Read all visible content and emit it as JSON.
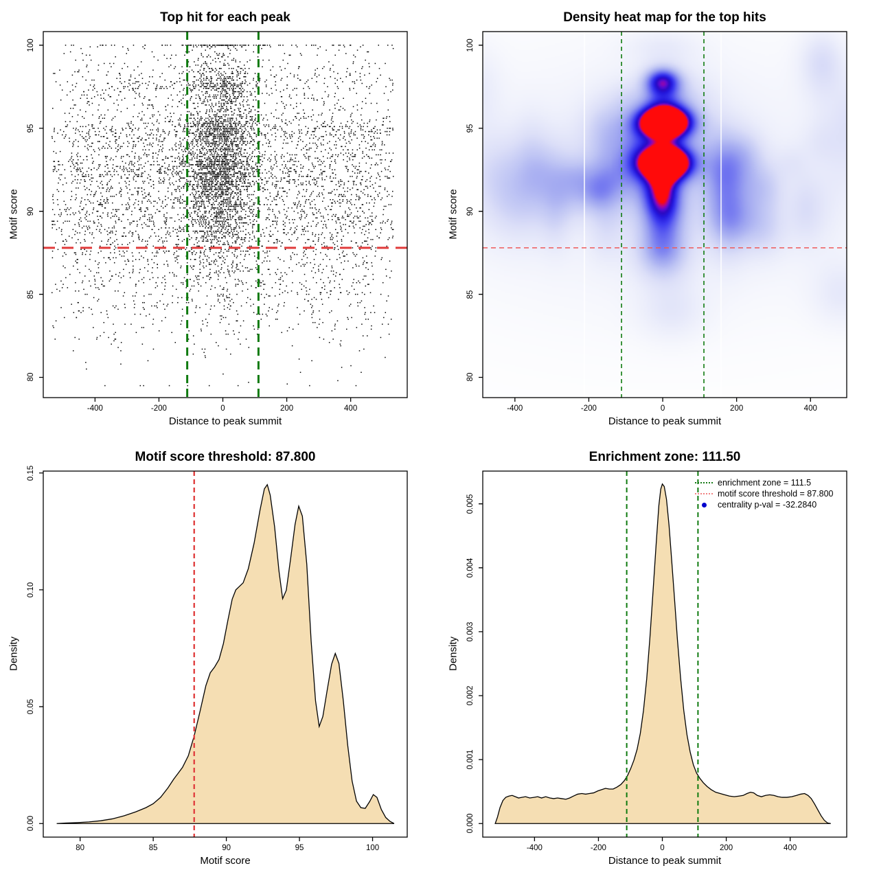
{
  "figure": {
    "background": "#ffffff",
    "text_color": "#000000",
    "fill_color": "#f5deb3",
    "green_line_color": "#0e7a0e",
    "red_line_color": "#e03a3a"
  },
  "chart_data": [
    {
      "panel": "top-left",
      "type": "scatter",
      "title": "Top hit for each peak",
      "xlabel": "Distance to peak summit",
      "ylabel": "Motif score",
      "xlim": [
        -562,
        577
      ],
      "ylim": [
        78.78,
        100.82
      ],
      "x_ticks": [
        -400,
        -200,
        0,
        200,
        400
      ],
      "x_tick_labels": [
        "-400",
        "-200",
        "0",
        "200",
        "400"
      ],
      "y_ticks": [
        80,
        85,
        90,
        95,
        100
      ],
      "y_tick_labels": [
        "80",
        "85",
        "90",
        "95",
        "100"
      ],
      "grid": false,
      "point_color": "#000000",
      "lines": [
        {
          "orient": "v",
          "value": -111.5,
          "color": "#0e7a0e",
          "width": 3,
          "dash": [
            12,
            8
          ]
        },
        {
          "orient": "v",
          "value": 111.5,
          "color": "#0e7a0e",
          "width": 3,
          "dash": [
            12,
            8
          ]
        },
        {
          "orient": "h",
          "value": 87.8,
          "color": "#e03a3a",
          "width": 3,
          "dash": [
            17,
            10
          ]
        }
      ],
      "points": {
        "count": 7500,
        "seed": 77,
        "score_quantum": 0.1,
        "score_range": [
          79.55,
          100
        ],
        "score_mixture": [
          [
            92.65,
            0.75,
            0.23
          ],
          [
            95.0,
            0.5,
            0.13
          ],
          [
            94.2,
            0.45,
            0.06
          ],
          [
            97.5,
            0.45,
            0.07
          ],
          [
            96.3,
            0.5,
            0.04
          ],
          [
            91.0,
            0.9,
            0.13
          ],
          [
            89.6,
            0.9,
            0.09
          ],
          [
            88.5,
            1.0,
            0.07
          ],
          [
            87.0,
            1.3,
            0.06
          ],
          [
            85.3,
            1.5,
            0.045
          ],
          [
            83.5,
            1.6,
            0.02
          ],
          [
            98.4,
            0.4,
            0.025
          ],
          [
            99.5,
            0.35,
            0.015
          ],
          [
            100.0,
            0.04,
            0.02
          ],
          [
            90.0,
            5.0,
            0.035
          ]
        ],
        "center_x": {
          "mean": -8,
          "sd": 55
        },
        "center_fraction_by_score": [
          [
            99.2,
            0.55
          ],
          [
            91,
            0.45
          ],
          [
            88.5,
            0.33
          ],
          [
            86,
            0.2
          ],
          [
            0,
            0.1
          ]
        ],
        "x_range": [
          -535,
          535
        ]
      }
    },
    {
      "panel": "top-right",
      "type": "heatmap",
      "title": "Density heat map for the top hits",
      "xlabel": "Distance to peak summit",
      "ylabel": "Motif score",
      "xlim": [
        -487,
        498
      ],
      "ylim": [
        78.78,
        100.82
      ],
      "x_ticks": [
        -400,
        -200,
        0,
        200,
        400
      ],
      "x_tick_labels": [
        "-400",
        "-200",
        "0",
        "200",
        "400"
      ],
      "y_ticks": [
        80,
        85,
        90,
        95,
        100
      ],
      "y_tick_labels": [
        "80",
        "85",
        "90",
        "95",
        "100"
      ],
      "lines": [
        {
          "orient": "v",
          "value": -111.5,
          "color": "#0e7a0e",
          "width": 1.6,
          "dash": [
            6,
            5
          ]
        },
        {
          "orient": "v",
          "value": 111.5,
          "color": "#0e7a0e",
          "width": 1.6,
          "dash": [
            6,
            5
          ]
        },
        {
          "orient": "h",
          "value": 87.8,
          "color": "#ef5a5a",
          "width": 1.6,
          "dash": [
            7,
            5
          ]
        }
      ],
      "white_streaks_x": [
        -212,
        158
      ],
      "colormap": [
        [
          0,
          "#ffffff"
        ],
        [
          0.06,
          "#f7f8fd"
        ],
        [
          0.14,
          "#eceefb"
        ],
        [
          0.24,
          "#dcdff8"
        ],
        [
          0.36,
          "#bfc5f4"
        ],
        [
          0.48,
          "#9aa1f0"
        ],
        [
          0.6,
          "#6a6ef0"
        ],
        [
          0.7,
          "#3d3cf0"
        ],
        [
          0.79,
          "#2317dd"
        ],
        [
          0.85,
          "#2c0ac2"
        ],
        [
          0.9,
          "#5c0ad2"
        ],
        [
          0.945,
          "#a706a0"
        ],
        [
          1,
          "#ff0a0a"
        ]
      ],
      "hotspots": [
        [
          5,
          95.35
        ],
        [
          8,
          92.9
        ]
      ],
      "blobs": [
        [
          5,
          95.35,
          46,
          0.62,
          1.45
        ],
        [
          8,
          92.9,
          44,
          0.65,
          1.45
        ],
        [
          0,
          97.8,
          34,
          0.6,
          0.68
        ],
        [
          0,
          96.5,
          42,
          0.65,
          0.2
        ],
        [
          -4,
          91.35,
          32,
          0.9,
          0.45
        ],
        [
          2,
          90.3,
          36,
          1.0,
          0.32
        ],
        [
          0,
          89.0,
          42,
          1.1,
          0.22
        ],
        [
          0,
          87.7,
          48,
          0.9,
          0.22
        ],
        [
          0,
          86.6,
          52,
          0.9,
          0.12
        ],
        [
          0,
          92.8,
          65,
          3.2,
          0.12
        ],
        [
          0,
          93.5,
          115,
          3.2,
          0.08
        ],
        [
          0,
          99.9,
          70,
          0.7,
          0.09
        ],
        [
          -45,
          95.0,
          95,
          1.3,
          0.06
        ],
        [
          50,
          93.3,
          95,
          1.5,
          0.04
        ],
        [
          0,
          91.5,
          480,
          5.2,
          0.09
        ],
        [
          0,
          92.5,
          560,
          8.0,
          0.05
        ]
      ],
      "noise": {
        "seed": 97,
        "count": 48,
        "x_range": [
          -515,
          515
        ],
        "y_center": 91.5,
        "y_sd": 3.6,
        "y_clamp": [
          82.5,
          99.6
        ],
        "sx_range": [
          28,
          65
        ],
        "sy_range": [
          0.7,
          2.0
        ],
        "w_range": [
          0.05,
          0.14
        ]
      }
    },
    {
      "panel": "bottom-left",
      "type": "area",
      "title": "Motif score threshold: 87.800",
      "xlabel": "Motif score",
      "ylabel": "Density",
      "xlim": [
        77.48,
        102.37
      ],
      "ylim": [
        -0.0058,
        0.1508
      ],
      "x_ticks": [
        80,
        85,
        90,
        95,
        100
      ],
      "x_tick_labels": [
        "80",
        "85",
        "90",
        "95",
        "100"
      ],
      "y_ticks": [
        0,
        0.05,
        0.1,
        0.15
      ],
      "y_tick_labels": [
        "0.00",
        "0.05",
        "0.10",
        "0.15"
      ],
      "fill": "#f5deb3",
      "stroke": "#000000",
      "motif_score_threshold": 87.8,
      "lines": [
        {
          "orient": "v",
          "value": 87.8,
          "color": "#e04040",
          "width": 2.4,
          "dash": [
            7,
            5
          ]
        }
      ],
      "curve": [
        [
          78.4,
          0
        ],
        [
          79.0,
          0.0002
        ],
        [
          79.8,
          0.0004
        ],
        [
          80.6,
          0.0007
        ],
        [
          81.4,
          0.0012
        ],
        [
          82.2,
          0.002
        ],
        [
          83.0,
          0.0033
        ],
        [
          83.8,
          0.005
        ],
        [
          84.5,
          0.0068
        ],
        [
          85.0,
          0.0085
        ],
        [
          85.5,
          0.0112
        ],
        [
          86.0,
          0.0152
        ],
        [
          86.4,
          0.019
        ],
        [
          86.7,
          0.0215
        ],
        [
          87.0,
          0.024
        ],
        [
          87.4,
          0.029
        ],
        [
          87.8,
          0.0375
        ],
        [
          88.2,
          0.048
        ],
        [
          88.6,
          0.059
        ],
        [
          88.9,
          0.0645
        ],
        [
          89.2,
          0.067
        ],
        [
          89.5,
          0.0702
        ],
        [
          89.8,
          0.077
        ],
        [
          90.1,
          0.0868
        ],
        [
          90.4,
          0.096
        ],
        [
          90.65,
          0.1
        ],
        [
          90.9,
          0.1015
        ],
        [
          91.15,
          0.103
        ],
        [
          91.5,
          0.109
        ],
        [
          91.9,
          0.12
        ],
        [
          92.3,
          0.134
        ],
        [
          92.6,
          0.1432
        ],
        [
          92.8,
          0.145
        ],
        [
          93.0,
          0.1405
        ],
        [
          93.3,
          0.127
        ],
        [
          93.6,
          0.108
        ],
        [
          93.85,
          0.0962
        ],
        [
          94.1,
          0.0998
        ],
        [
          94.4,
          0.1135
        ],
        [
          94.7,
          0.128
        ],
        [
          94.95,
          0.1358
        ],
        [
          95.2,
          0.1315
        ],
        [
          95.5,
          0.111
        ],
        [
          95.8,
          0.078
        ],
        [
          96.1,
          0.0525
        ],
        [
          96.35,
          0.0415
        ],
        [
          96.6,
          0.0458
        ],
        [
          96.9,
          0.0572
        ],
        [
          97.2,
          0.0682
        ],
        [
          97.45,
          0.0728
        ],
        [
          97.7,
          0.0685
        ],
        [
          98.0,
          0.0525
        ],
        [
          98.3,
          0.0335
        ],
        [
          98.6,
          0.0182
        ],
        [
          98.9,
          0.0096
        ],
        [
          99.2,
          0.0068
        ],
        [
          99.5,
          0.0065
        ],
        [
          99.8,
          0.0094
        ],
        [
          100.05,
          0.0124
        ],
        [
          100.3,
          0.0112
        ],
        [
          100.6,
          0.006
        ],
        [
          100.9,
          0.0026
        ],
        [
          101.2,
          0.0009
        ],
        [
          101.45,
          0.0001
        ]
      ]
    },
    {
      "panel": "bottom-right",
      "type": "area",
      "title": "Enrichment zone: 111.50",
      "xlabel": "Distance to peak summit",
      "ylabel": "Density",
      "xlim": [
        -562,
        577
      ],
      "ylim": [
        -0.000212,
        0.005512
      ],
      "x_ticks": [
        -400,
        -200,
        0,
        200,
        400
      ],
      "x_tick_labels": [
        "-400",
        "-200",
        "0",
        "200",
        "400"
      ],
      "y_ticks": [
        0,
        0.001,
        0.002,
        0.003,
        0.004,
        0.005
      ],
      "y_tick_labels": [
        "0.000",
        "0.001",
        "0.002",
        "0.003",
        "0.004",
        "0.005"
      ],
      "fill": "#f5deb3",
      "stroke": "#000000",
      "enrichment_zone": 111.5,
      "lines": [
        {
          "orient": "v",
          "value": -111.5,
          "color": "#0e7a0e",
          "width": 2,
          "dash": [
            7,
            5
          ]
        },
        {
          "orient": "v",
          "value": 111.5,
          "color": "#0e7a0e",
          "width": 2,
          "dash": [
            7,
            5
          ]
        }
      ],
      "legend": [
        {
          "label": "enrichment zone = 111.5",
          "swatch": "dotted-line",
          "color": "#157a15"
        },
        {
          "label": "motif score threshold = 87.800",
          "swatch": "dotted-line",
          "color": "#f08080"
        },
        {
          "label": "centrality p-val = -32.2840",
          "swatch": "dot",
          "color": "#0000cd"
        }
      ],
      "curve": [
        [
          -523,
          0
        ],
        [
          -516,
          0.0001
        ],
        [
          -508,
          0.00025
        ],
        [
          -499,
          0.00036
        ],
        [
          -490,
          0.00041
        ],
        [
          -480,
          0.00043
        ],
        [
          -470,
          0.00044
        ],
        [
          -460,
          0.00042
        ],
        [
          -450,
          0.0004
        ],
        [
          -440,
          0.00041
        ],
        [
          -428,
          0.00042
        ],
        [
          -415,
          0.0004
        ],
        [
          -402,
          0.00041
        ],
        [
          -390,
          0.00042
        ],
        [
          -378,
          0.0004
        ],
        [
          -365,
          0.00042
        ],
        [
          -352,
          0.0004
        ],
        [
          -340,
          0.00039
        ],
        [
          -328,
          0.0004
        ],
        [
          -315,
          0.00039
        ],
        [
          -302,
          0.00038
        ],
        [
          -290,
          0.0004
        ],
        [
          -278,
          0.00043
        ],
        [
          -265,
          0.00046
        ],
        [
          -252,
          0.00047
        ],
        [
          -240,
          0.00046
        ],
        [
          -228,
          0.00047
        ],
        [
          -215,
          0.00048
        ],
        [
          -202,
          0.00051
        ],
        [
          -190,
          0.00053
        ],
        [
          -178,
          0.00055
        ],
        [
          -166,
          0.00054
        ],
        [
          -154,
          0.00054
        ],
        [
          -142,
          0.00057
        ],
        [
          -130,
          0.00061
        ],
        [
          -119,
          0.00067
        ],
        [
          -109,
          0.00075
        ],
        [
          -99,
          0.00086
        ],
        [
          -89,
          0.00099
        ],
        [
          -79,
          0.00116
        ],
        [
          -69,
          0.00141
        ],
        [
          -59,
          0.00177
        ],
        [
          -49,
          0.00226
        ],
        [
          -39,
          0.0029
        ],
        [
          -29,
          0.00364
        ],
        [
          -19,
          0.0044
        ],
        [
          -11,
          0.00497
        ],
        [
          -5,
          0.00523
        ],
        [
          0,
          0.00531
        ],
        [
          6,
          0.00527
        ],
        [
          13,
          0.00507
        ],
        [
          21,
          0.00466
        ],
        [
          29,
          0.00413
        ],
        [
          38,
          0.00352
        ],
        [
          47,
          0.00289
        ],
        [
          57,
          0.00228
        ],
        [
          67,
          0.00177
        ],
        [
          77,
          0.00139
        ],
        [
          87,
          0.00112
        ],
        [
          97,
          0.00092
        ],
        [
          107,
          0.00079
        ],
        [
          117,
          0.00071
        ],
        [
          128,
          0.00064
        ],
        [
          140,
          0.00058
        ],
        [
          153,
          0.00053
        ],
        [
          167,
          0.00049
        ],
        [
          181,
          0.00047
        ],
        [
          195,
          0.00045
        ],
        [
          210,
          0.00043
        ],
        [
          225,
          0.00042
        ],
        [
          240,
          0.00043
        ],
        [
          253,
          0.00044
        ],
        [
          265,
          0.00047
        ],
        [
          276,
          0.00049
        ],
        [
          286,
          0.00048
        ],
        [
          297,
          0.00044
        ],
        [
          310,
          0.00042
        ],
        [
          323,
          0.00044
        ],
        [
          336,
          0.00045
        ],
        [
          349,
          0.00044
        ],
        [
          362,
          0.00042
        ],
        [
          375,
          0.00041
        ],
        [
          390,
          0.00041
        ],
        [
          405,
          0.00042
        ],
        [
          420,
          0.00044
        ],
        [
          433,
          0.00046
        ],
        [
          445,
          0.00047
        ],
        [
          456,
          0.00044
        ],
        [
          466,
          0.00039
        ],
        [
          476,
          0.00031
        ],
        [
          487,
          0.00021
        ],
        [
          497,
          0.00012
        ],
        [
          507,
          5e-05
        ],
        [
          517,
          1e-05
        ],
        [
          527,
          0
        ]
      ]
    }
  ]
}
